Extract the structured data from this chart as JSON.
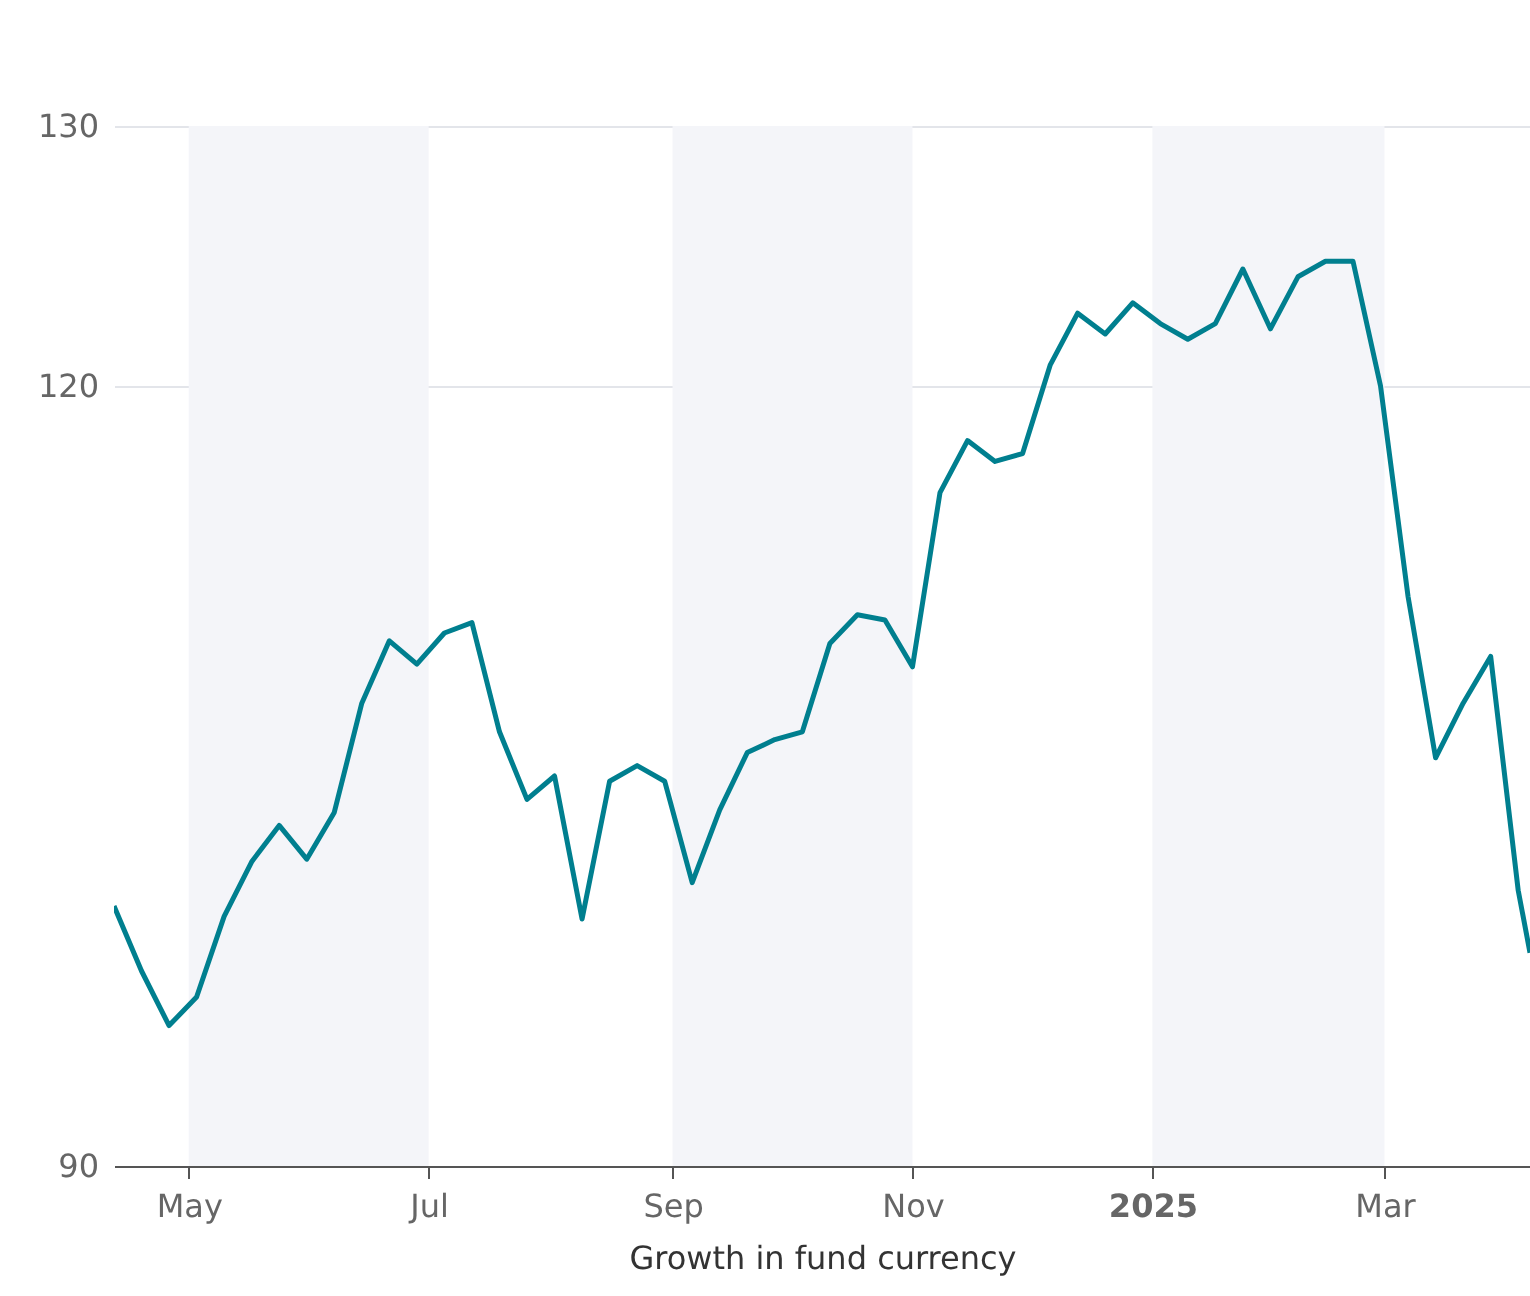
{
  "chart_data": {
    "type": "line",
    "xlabel": "Growth in fund currency",
    "x": [
      "2024-04-12",
      "2024-04-19",
      "2024-04-26",
      "2024-05-03",
      "2024-05-10",
      "2024-05-17",
      "2024-05-24",
      "2024-05-31",
      "2024-06-07",
      "2024-06-14",
      "2024-06-21",
      "2024-06-28",
      "2024-07-05",
      "2024-07-12",
      "2024-07-19",
      "2024-07-26",
      "2024-08-02",
      "2024-08-09",
      "2024-08-16",
      "2024-08-23",
      "2024-08-30",
      "2024-09-06",
      "2024-09-13",
      "2024-09-20",
      "2024-09-27",
      "2024-10-04",
      "2024-10-11",
      "2024-10-18",
      "2024-10-25",
      "2024-11-01",
      "2024-11-08",
      "2024-11-15",
      "2024-11-22",
      "2024-11-29",
      "2024-12-06",
      "2024-12-13",
      "2024-12-20",
      "2024-12-27",
      "2025-01-03",
      "2025-01-10",
      "2025-01-17",
      "2025-01-24",
      "2025-01-31",
      "2025-02-07",
      "2025-02-14",
      "2025-02-21",
      "2025-02-28",
      "2025-03-07",
      "2025-03-14",
      "2025-03-21",
      "2025-03-28",
      "2025-04-04",
      "2025-04-07"
    ],
    "series": [
      {
        "color": "#007f8f",
        "values": [
          100.0,
          97.5,
          95.4,
          96.5,
          99.6,
          101.7,
          103.1,
          101.8,
          103.6,
          107.8,
          110.2,
          109.3,
          110.5,
          110.9,
          106.7,
          104.1,
          105.0,
          99.5,
          104.8,
          105.4,
          104.8,
          100.9,
          103.7,
          105.9,
          106.4,
          106.7,
          110.1,
          111.2,
          111.0,
          109.2,
          115.9,
          117.9,
          117.1,
          117.4,
          120.8,
          122.8,
          122.0,
          123.2,
          122.4,
          121.8,
          122.4,
          124.5,
          122.2,
          124.2,
          124.8,
          124.8,
          120.0,
          111.9,
          105.7,
          107.8,
          109.6,
          100.6,
          98.2
        ]
      }
    ],
    "xlim": [
      "2024-04-12",
      "2025-04-07"
    ],
    "xticks": [
      {
        "value": "2024-05-01",
        "label": "May"
      },
      {
        "value": "2024-07-01",
        "label": "Jul"
      },
      {
        "value": "2024-09-01",
        "label": "Sep"
      },
      {
        "value": "2024-11-01",
        "label": "Nov"
      },
      {
        "value": "2025-01-01",
        "label": "2025"
      },
      {
        "value": "2025-03-01",
        "label": "Mar"
      }
    ],
    "ylim": [
      90,
      130
    ],
    "yticks": [
      90,
      120,
      130
    ],
    "grid": "y",
    "marker": "none",
    "line_style": "solid",
    "bands": [
      {
        "axis": "x",
        "from": "2024-05-01",
        "to": "2024-07-01",
        "color": "#f4f5f9"
      },
      {
        "axis": "x",
        "from": "2024-09-01",
        "to": "2024-11-01",
        "color": "#f4f5f9"
      },
      {
        "axis": "x",
        "from": "2025-01-01",
        "to": "2025-03-01",
        "color": "#f4f5f9"
      }
    ]
  }
}
